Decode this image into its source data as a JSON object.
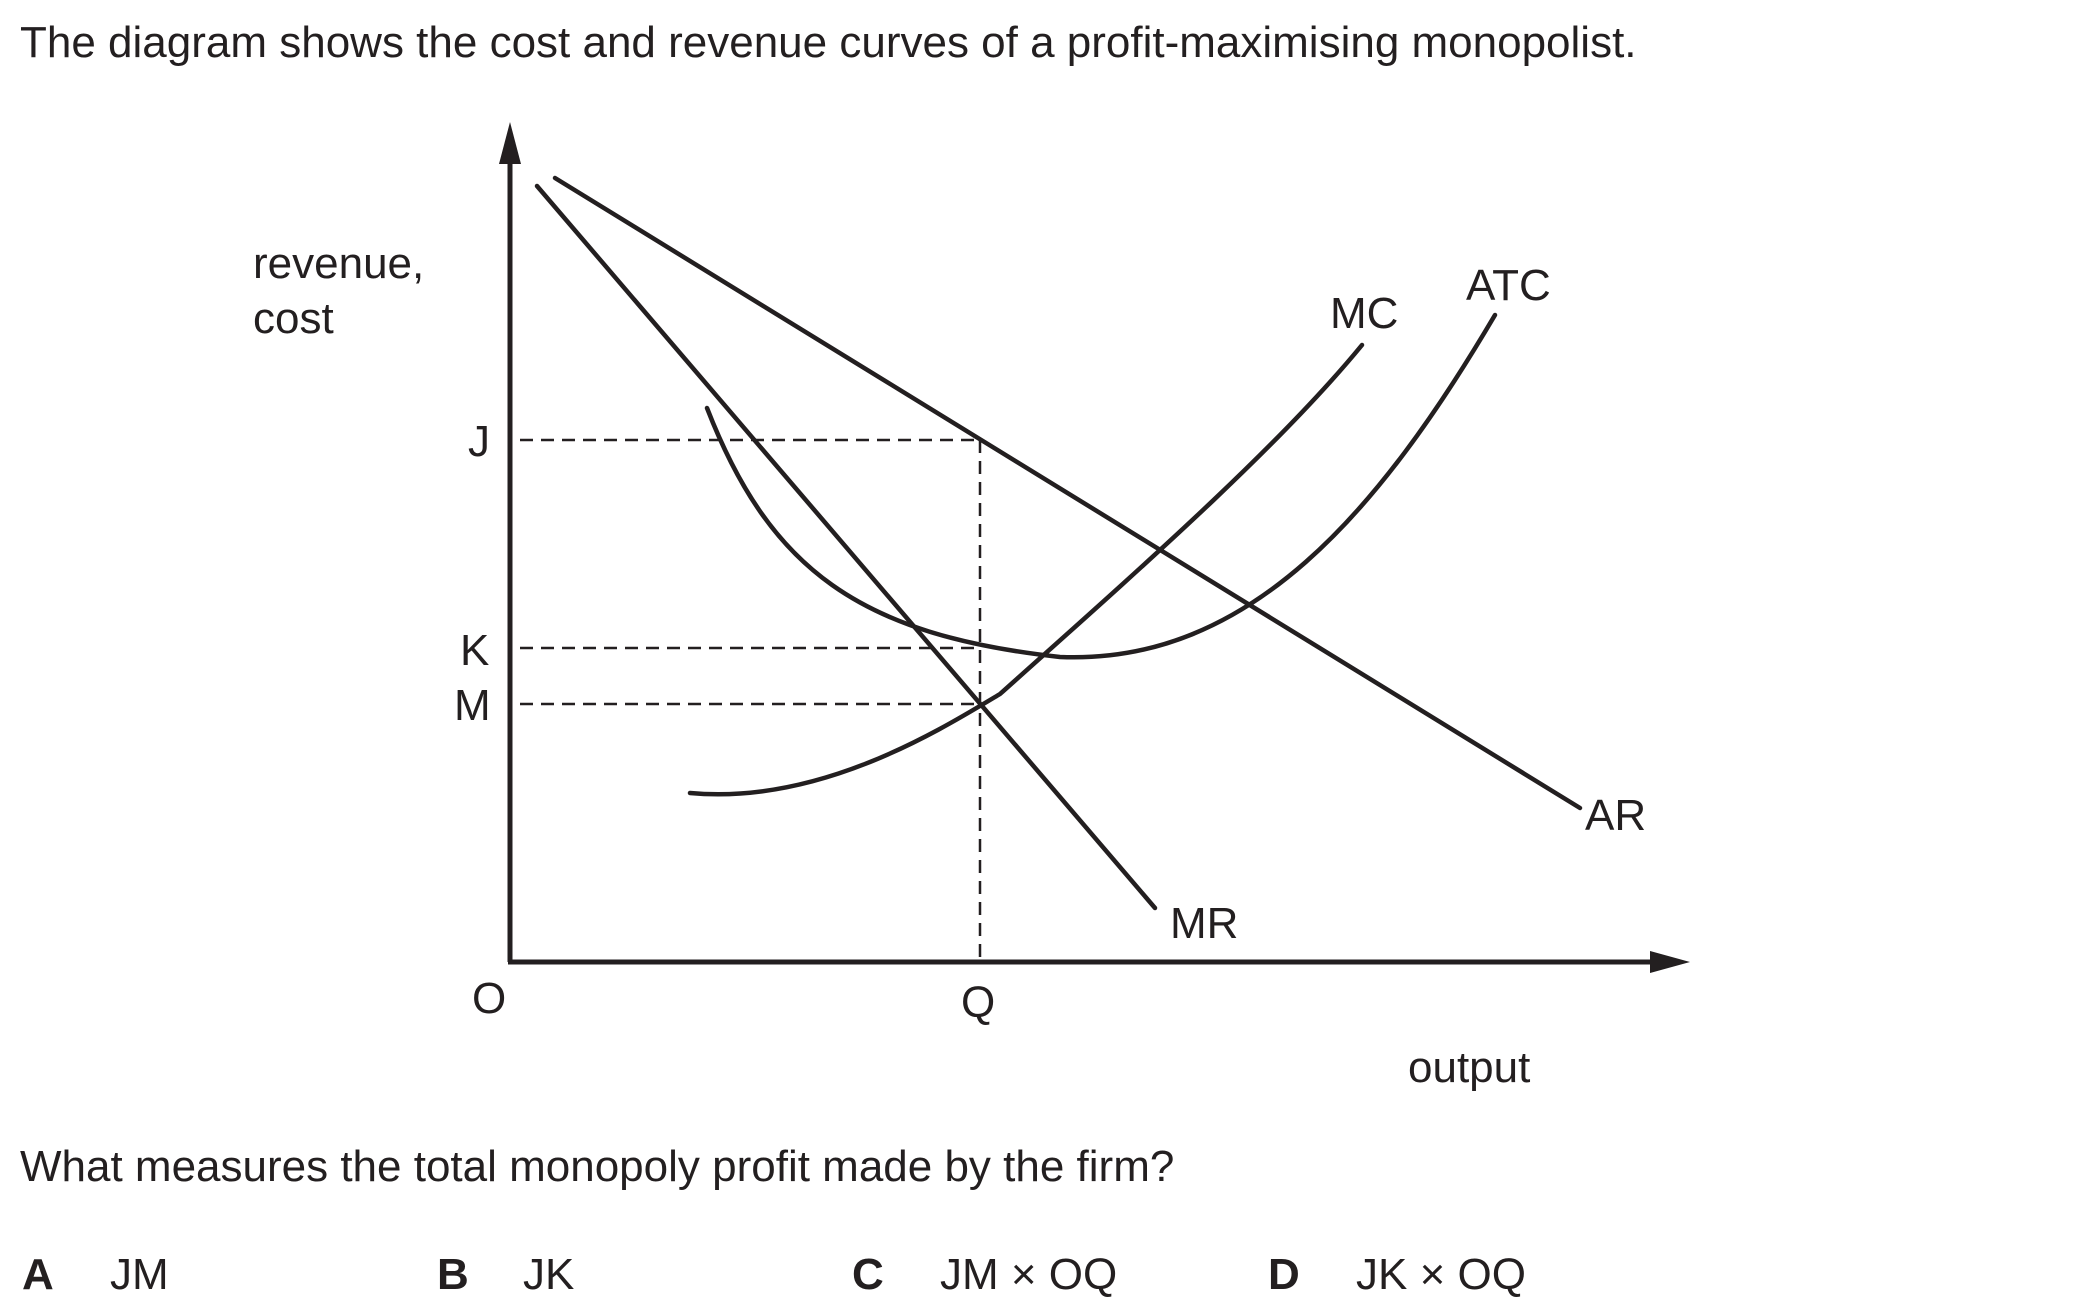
{
  "intro_text": "The diagram shows the cost and revenue curves of a profit-maximising monopolist.",
  "question_text": "What measures the total monopoly profit made by the firm?",
  "diagram": {
    "y_axis_label_line1": "revenue,",
    "y_axis_label_line2": "cost",
    "x_axis_label": "output",
    "origin_label": "O",
    "quantity_label": "Q",
    "price_labels": {
      "j": "J",
      "k": "K",
      "m": "M"
    },
    "curve_labels": {
      "mc": "MC",
      "atc": "ATC",
      "ar": "AR",
      "mr": "MR"
    }
  },
  "options": [
    {
      "letter": "A",
      "text": "JM"
    },
    {
      "letter": "B",
      "text": "JK"
    },
    {
      "letter": "C",
      "text": "JM × OQ"
    },
    {
      "letter": "D",
      "text": "JK × OQ"
    }
  ]
}
